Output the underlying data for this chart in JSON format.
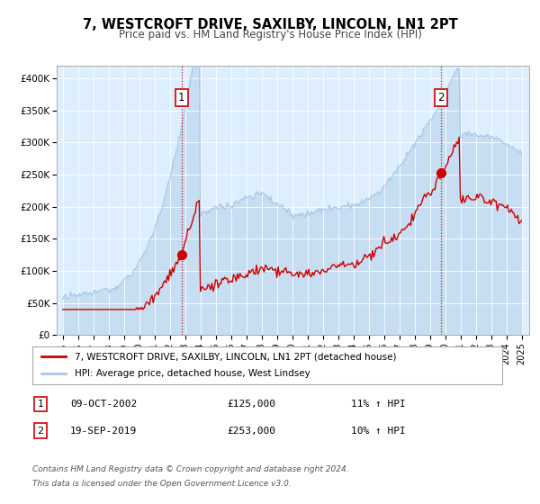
{
  "title": "7, WESTCROFT DRIVE, SAXILBY, LINCOLN, LN1 2PT",
  "subtitle": "Price paid vs. HM Land Registry's House Price Index (HPI)",
  "hpi_color": "#a8c8e8",
  "property_color": "#cc0000",
  "plot_bg": "#ddeeff",
  "legend_label_property": "7, WESTCROFT DRIVE, SAXILBY, LINCOLN, LN1 2PT (detached house)",
  "legend_label_hpi": "HPI: Average price, detached house, West Lindsey",
  "marker1_date_x": 2002.77,
  "marker1_price": 125000,
  "marker1_label": "1",
  "marker1_text": "09-OCT-2002",
  "marker1_price_text": "£125,000",
  "marker1_hpi_text": "11% ↑ HPI",
  "marker2_date_x": 2019.72,
  "marker2_price": 253000,
  "marker2_label": "2",
  "marker2_text": "19-SEP-2019",
  "marker2_price_text": "£253,000",
  "marker2_hpi_text": "10% ↑ HPI",
  "footnote1": "Contains HM Land Registry data © Crown copyright and database right 2024.",
  "footnote2": "This data is licensed under the Open Government Licence v3.0.",
  "ylim": [
    0,
    420000
  ],
  "yticks": [
    0,
    50000,
    100000,
    150000,
    200000,
    250000,
    300000,
    350000,
    400000
  ],
  "xlim": [
    1994.6,
    2025.5
  ],
  "xticks": [
    1995,
    1996,
    1997,
    1998,
    1999,
    2000,
    2001,
    2002,
    2003,
    2004,
    2005,
    2006,
    2007,
    2008,
    2009,
    2010,
    2011,
    2012,
    2013,
    2014,
    2015,
    2016,
    2017,
    2018,
    2019,
    2020,
    2021,
    2022,
    2023,
    2024,
    2025
  ]
}
